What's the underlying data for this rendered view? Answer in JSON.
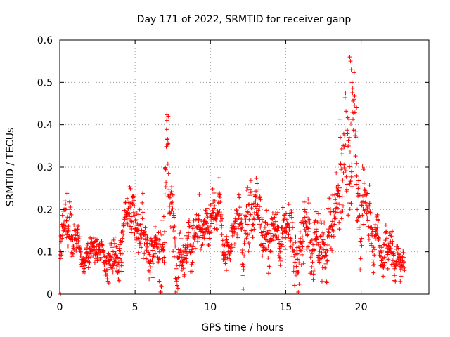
{
  "chart_data": {
    "type": "scatter",
    "title": "Day 171 of 2022, SRMTID for receiver ganp",
    "xlabel": "GPS time / hours",
    "ylabel": "SRMTID / TECUs",
    "xlim": [
      0,
      24.5
    ],
    "ylim": [
      0,
      0.6
    ],
    "xticks": [
      0,
      5,
      10,
      15,
      20
    ],
    "yticks": [
      0,
      0.1,
      0.2,
      0.3,
      0.4,
      0.5,
      0.6
    ],
    "xtick_labels": [
      "0",
      "5",
      "10",
      "15",
      "20"
    ],
    "ytick_labels": [
      "0",
      "0.1",
      "0.2",
      "0.3",
      "0.4",
      "0.5",
      "0.6"
    ],
    "grid": true,
    "marker": "+",
    "series": [
      {
        "name": "SRMTID",
        "color": "#ff0000",
        "envelope": {
          "x": [
            0,
            0.3,
            0.6,
            1.0,
            1.5,
            2.0,
            2.5,
            3.0,
            3.5,
            4.0,
            4.5,
            5.0,
            5.5,
            6.0,
            6.5,
            6.8,
            7.0,
            7.2,
            7.5,
            8.0,
            8.5,
            9.0,
            9.5,
            10.0,
            10.5,
            11.0,
            11.5,
            12.0,
            12.5,
            13.0,
            13.5,
            14.0,
            14.5,
            15.0,
            15.5,
            16.0,
            16.5,
            17.0,
            17.5,
            18.0,
            18.5,
            19.0,
            19.2,
            19.4,
            19.6,
            20.0,
            20.5,
            21.0,
            21.5,
            22.0,
            22.5,
            22.8
          ],
          "center": [
            0.1,
            0.14,
            0.17,
            0.13,
            0.1,
            0.09,
            0.1,
            0.09,
            0.12,
            0.15,
            0.17,
            0.16,
            0.14,
            0.12,
            0.1,
            0.15,
            0.22,
            0.28,
            0.18,
            0.12,
            0.11,
            0.13,
            0.12,
            0.14,
            0.15,
            0.13,
            0.12,
            0.14,
            0.17,
            0.19,
            0.17,
            0.14,
            0.12,
            0.14,
            0.16,
            0.18,
            0.17,
            0.16,
            0.14,
            0.13,
            0.18,
            0.26,
            0.3,
            0.35,
            0.3,
            0.22,
            0.18,
            0.13,
            0.11,
            0.1,
            0.08,
            0.07
          ],
          "spread": [
            0.03,
            0.05,
            0.05,
            0.03,
            0.02,
            0.02,
            0.02,
            0.02,
            0.03,
            0.04,
            0.04,
            0.04,
            0.04,
            0.03,
            0.03,
            0.06,
            0.09,
            0.08,
            0.05,
            0.03,
            0.03,
            0.04,
            0.03,
            0.03,
            0.04,
            0.03,
            0.03,
            0.04,
            0.05,
            0.06,
            0.05,
            0.04,
            0.03,
            0.04,
            0.05,
            0.05,
            0.05,
            0.05,
            0.04,
            0.05,
            0.07,
            0.09,
            0.12,
            0.1,
            0.08,
            0.06,
            0.05,
            0.04,
            0.03,
            0.03,
            0.02,
            0.02
          ]
        },
        "x_range": [
          0.02,
          22.9
        ],
        "point_count": 1500,
        "peaks": [
          {
            "x": 0.05,
            "y": 0.0
          },
          {
            "x": 3.2,
            "y": 0.03
          },
          {
            "x": 7.1,
            "y": 0.41
          },
          {
            "x": 7.2,
            "y": 0.42
          },
          {
            "x": 19.25,
            "y": 0.56
          },
          {
            "x": 19.3,
            "y": 0.55
          },
          {
            "x": 19.35,
            "y": 0.53
          },
          {
            "x": 19.4,
            "y": 0.5
          },
          {
            "x": 19.7,
            "y": 0.44
          },
          {
            "x": 22.6,
            "y": 0.03
          }
        ]
      }
    ]
  }
}
